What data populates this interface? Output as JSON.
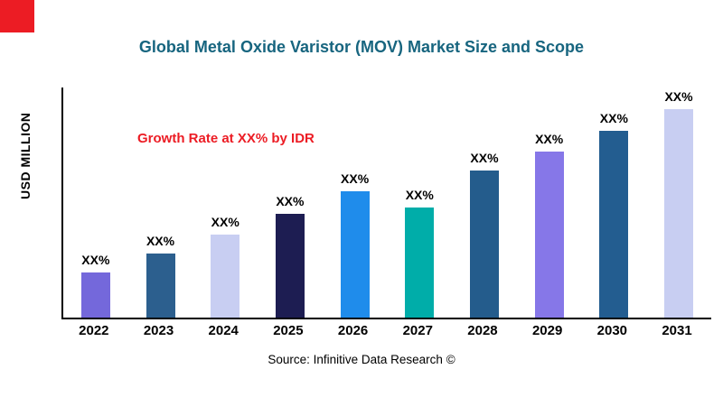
{
  "title": "Global Metal Oxide Varistor (MOV) Market Size and Scope",
  "annotation": "Growth Rate at XX% by IDR",
  "y_axis_label": "USD MILLION",
  "source": "Source: Infinitive Data Research ©",
  "colors": {
    "title": "#17657F",
    "annotation": "#EC1C24",
    "accent_square": "#EC1C24",
    "axis": "#000000"
  },
  "chart_data": {
    "type": "bar",
    "title": "Global Metal Oxide Varistor (MOV) Market Size and Scope",
    "categories": [
      "2022",
      "2023",
      "2024",
      "2025",
      "2026",
      "2027",
      "2028",
      "2029",
      "2030",
      "2031"
    ],
    "values": [
      50,
      71,
      92,
      115,
      140,
      122,
      163,
      184,
      207,
      231
    ],
    "values_note": "relative units; y-axis has no numeric tick labels in the image",
    "bar_labels": [
      "XX%",
      "XX%",
      "XX%",
      "XX%",
      "XX%",
      "XX%",
      "XX%",
      "XX%",
      "XX%",
      "XX%"
    ],
    "bar_colors": [
      "#7468DB",
      "#2C5F8E",
      "#C8CEF2",
      "#1D1D52",
      "#1F8CEB",
      "#00ADA9",
      "#245C8C",
      "#8677E8",
      "#235D90",
      "#C8CEF2"
    ],
    "xlabel": "",
    "ylabel": "USD MILLION",
    "grid": false,
    "legend": false,
    "annotation": "Growth Rate at XX% by IDR"
  }
}
